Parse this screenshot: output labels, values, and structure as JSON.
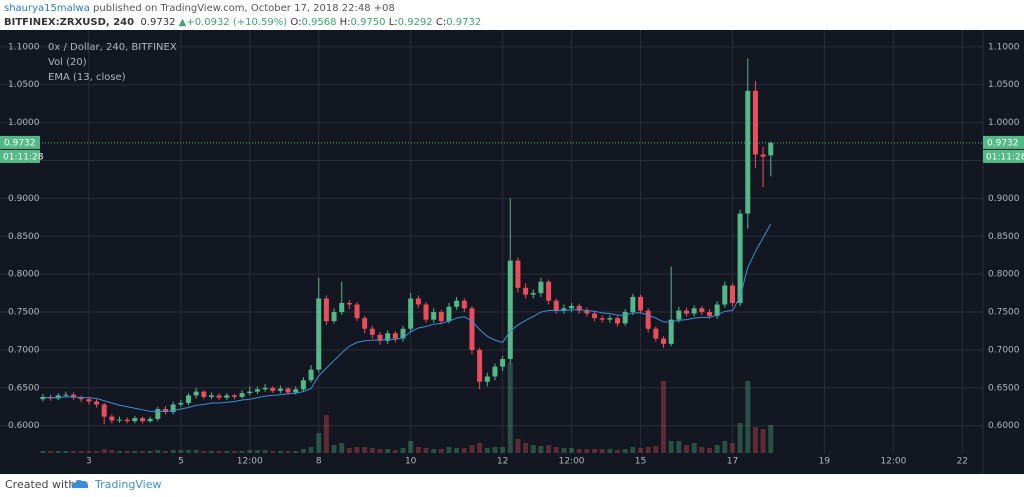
{
  "header": {
    "author": "shaurya15malwa",
    "published": "published on TradingView.com, October 17, 2018 22:48 +08",
    "symbol": "BITFINEX:ZRXUSD, 240",
    "last": "0.9732",
    "change": "▲+0.0932 (+10.59%)",
    "ohlc": [
      {
        "label": "O:",
        "value": "0.9568"
      },
      {
        "label": "H:",
        "value": "0.9750"
      },
      {
        "label": "L:",
        "value": "0.9292"
      },
      {
        "label": "C:",
        "value": "0.9732"
      }
    ]
  },
  "chart_data": {
    "type": "candlestick",
    "title": "0x / Dollar, 240, BITFINEX",
    "volume_name": "Vol (20)",
    "up_color": "#53b987",
    "down_color": "#eb4d5c",
    "grid": true,
    "x": [
      -6,
      -5,
      -4,
      -3,
      -2,
      -1,
      0,
      1,
      2,
      3,
      4,
      5,
      6,
      7,
      8,
      9,
      10,
      11,
      12,
      13,
      14,
      15,
      16,
      17,
      18,
      19,
      20,
      21,
      22,
      23,
      24,
      25,
      26,
      27,
      28,
      29,
      30,
      31,
      32,
      33,
      34,
      35,
      36,
      37,
      38,
      39,
      40,
      41,
      42,
      43,
      44,
      45,
      46,
      47,
      48,
      49,
      50,
      51,
      52,
      53,
      54,
      55,
      56,
      57,
      58,
      59,
      60,
      61,
      62,
      63,
      64,
      65,
      66,
      67,
      68,
      69,
      70,
      71,
      72,
      73,
      74,
      75,
      76,
      77,
      78,
      79,
      80,
      81,
      82,
      83,
      84,
      85,
      86,
      87,
      88,
      89
    ],
    "open": [
      0.635,
      0.638,
      0.636,
      0.64,
      0.641,
      0.637,
      0.635,
      0.632,
      0.628,
      0.612,
      0.607,
      0.608,
      0.606,
      0.61,
      0.606,
      0.609,
      0.622,
      0.618,
      0.628,
      0.63,
      0.64,
      0.645,
      0.638,
      0.64,
      0.637,
      0.64,
      0.638,
      0.643,
      0.645,
      0.648,
      0.65,
      0.646,
      0.649,
      0.644,
      0.648,
      0.66,
      0.674,
      0.768,
      0.738,
      0.75,
      0.762,
      0.76,
      0.742,
      0.728,
      0.72,
      0.712,
      0.722,
      0.715,
      0.728,
      0.768,
      0.76,
      0.74,
      0.75,
      0.738,
      0.757,
      0.765,
      0.755,
      0.7,
      0.658,
      0.665,
      0.678,
      0.688,
      0.818,
      0.782,
      0.773,
      0.775,
      0.79,
      0.765,
      0.752,
      0.755,
      0.758,
      0.752,
      0.748,
      0.742,
      0.74,
      0.742,
      0.735,
      0.75,
      0.77,
      0.752,
      0.728,
      0.715,
      0.708,
      0.74,
      0.752,
      0.748,
      0.755,
      0.75,
      0.745,
      0.76,
      0.785,
      0.762,
      0.88,
      1.042,
      0.958,
      0.9568
    ],
    "high": [
      0.642,
      0.641,
      0.643,
      0.645,
      0.644,
      0.64,
      0.638,
      0.635,
      0.63,
      0.615,
      0.612,
      0.611,
      0.613,
      0.612,
      0.612,
      0.625,
      0.626,
      0.632,
      0.634,
      0.643,
      0.65,
      0.647,
      0.644,
      0.643,
      0.643,
      0.642,
      0.647,
      0.652,
      0.652,
      0.655,
      0.652,
      0.653,
      0.651,
      0.652,
      0.664,
      0.68,
      0.795,
      0.772,
      0.755,
      0.79,
      0.766,
      0.763,
      0.745,
      0.732,
      0.724,
      0.726,
      0.725,
      0.732,
      0.775,
      0.772,
      0.763,
      0.755,
      0.753,
      0.762,
      0.77,
      0.768,
      0.758,
      0.703,
      0.67,
      0.682,
      0.692,
      0.9,
      0.822,
      0.788,
      0.78,
      0.795,
      0.793,
      0.768,
      0.76,
      0.762,
      0.761,
      0.756,
      0.751,
      0.746,
      0.746,
      0.745,
      0.754,
      0.774,
      0.773,
      0.755,
      0.731,
      0.718,
      0.81,
      0.757,
      0.756,
      0.759,
      0.758,
      0.754,
      0.764,
      0.79,
      0.788,
      0.885,
      1.085,
      1.055,
      0.968,
      0.975
    ],
    "low": [
      0.632,
      0.633,
      0.634,
      0.637,
      0.634,
      0.631,
      0.628,
      0.624,
      0.602,
      0.603,
      0.604,
      0.603,
      0.603,
      0.603,
      0.604,
      0.606,
      0.615,
      0.615,
      0.625,
      0.627,
      0.636,
      0.635,
      0.635,
      0.634,
      0.634,
      0.635,
      0.636,
      0.64,
      0.642,
      0.645,
      0.643,
      0.643,
      0.641,
      0.641,
      0.645,
      0.657,
      0.67,
      0.733,
      0.735,
      0.746,
      0.754,
      0.738,
      0.722,
      0.715,
      0.707,
      0.708,
      0.71,
      0.711,
      0.724,
      0.755,
      0.736,
      0.736,
      0.734,
      0.735,
      0.753,
      0.75,
      0.694,
      0.648,
      0.652,
      0.66,
      0.672,
      0.682,
      0.776,
      0.768,
      0.768,
      0.77,
      0.76,
      0.748,
      0.748,
      0.75,
      0.748,
      0.744,
      0.738,
      0.736,
      0.736,
      0.731,
      0.732,
      0.746,
      0.748,
      0.723,
      0.711,
      0.703,
      0.705,
      0.736,
      0.744,
      0.744,
      0.746,
      0.741,
      0.741,
      0.756,
      0.758,
      0.758,
      0.86,
      0.94,
      0.915,
      0.9292
    ],
    "close": [
      0.638,
      0.636,
      0.64,
      0.641,
      0.637,
      0.635,
      0.632,
      0.628,
      0.612,
      0.607,
      0.608,
      0.606,
      0.61,
      0.606,
      0.609,
      0.622,
      0.618,
      0.628,
      0.63,
      0.64,
      0.645,
      0.638,
      0.64,
      0.637,
      0.64,
      0.638,
      0.643,
      0.645,
      0.648,
      0.65,
      0.646,
      0.649,
      0.644,
      0.648,
      0.66,
      0.674,
      0.768,
      0.738,
      0.75,
      0.762,
      0.76,
      0.742,
      0.728,
      0.72,
      0.712,
      0.722,
      0.715,
      0.728,
      0.768,
      0.76,
      0.74,
      0.75,
      0.738,
      0.757,
      0.765,
      0.755,
      0.7,
      0.658,
      0.665,
      0.678,
      0.688,
      0.818,
      0.782,
      0.773,
      0.775,
      0.79,
      0.765,
      0.752,
      0.755,
      0.758,
      0.752,
      0.748,
      0.742,
      0.74,
      0.742,
      0.735,
      0.75,
      0.77,
      0.752,
      0.728,
      0.715,
      0.708,
      0.74,
      0.752,
      0.748,
      0.755,
      0.75,
      0.745,
      0.76,
      0.785,
      0.762,
      0.88,
      1.042,
      0.958,
      0.955,
      0.9732
    ],
    "volume": [
      2,
      2,
      2,
      2,
      2,
      2,
      2,
      2,
      4,
      3,
      2,
      2,
      2,
      2,
      2,
      3,
      2,
      3,
      3,
      3,
      3,
      2,
      2,
      2,
      2,
      2,
      2,
      3,
      3,
      3,
      2,
      2,
      2,
      2,
      4,
      6,
      20,
      38,
      8,
      10,
      5,
      6,
      6,
      5,
      4,
      4,
      3,
      5,
      12,
      6,
      5,
      4,
      4,
      6,
      5,
      5,
      8,
      10,
      5,
      6,
      6,
      90,
      14,
      10,
      8,
      7,
      8,
      6,
      5,
      5,
      4,
      4,
      4,
      4,
      4,
      3,
      4,
      6,
      5,
      6,
      7,
      72,
      12,
      12,
      8,
      10,
      6,
      5,
      8,
      12,
      10,
      30,
      72,
      26,
      24,
      28
    ],
    "vlim": [
      0,
      100
    ],
    "ema": {
      "name": "EMA (13, close)",
      "color": "#3b8fd9",
      "values": [
        0.637,
        0.637,
        0.637,
        0.638,
        0.638,
        0.637,
        0.637,
        0.636,
        0.633,
        0.63,
        0.627,
        0.625,
        0.623,
        0.621,
        0.619,
        0.619,
        0.619,
        0.62,
        0.622,
        0.624,
        0.627,
        0.628,
        0.63,
        0.63,
        0.631,
        0.632,
        0.634,
        0.635,
        0.637,
        0.639,
        0.64,
        0.641,
        0.642,
        0.643,
        0.645,
        0.649,
        0.666,
        0.676,
        0.686,
        0.696,
        0.705,
        0.71,
        0.712,
        0.713,
        0.713,
        0.714,
        0.714,
        0.716,
        0.724,
        0.729,
        0.731,
        0.734,
        0.735,
        0.738,
        0.742,
        0.744,
        0.738,
        0.727,
        0.718,
        0.713,
        0.71,
        0.725,
        0.733,
        0.739,
        0.744,
        0.75,
        0.752,
        0.752,
        0.752,
        0.753,
        0.753,
        0.752,
        0.751,
        0.749,
        0.748,
        0.746,
        0.746,
        0.749,
        0.749,
        0.746,
        0.742,
        0.737,
        0.737,
        0.739,
        0.74,
        0.742,
        0.743,
        0.743,
        0.746,
        0.751,
        0.752,
        0.77,
        0.809,
        0.83,
        0.848,
        0.866
      ]
    },
    "last_price": 0.9732,
    "countdown": "01:11:28",
    "xlim": [
      -11.6,
      116.7
    ],
    "ylim": [
      0.564,
      1.113
    ],
    "xticks": [
      {
        "value": 0,
        "label": "3"
      },
      {
        "value": 12,
        "label": "5"
      },
      {
        "value": 21,
        "label": "12:00"
      },
      {
        "value": 30,
        "label": "8"
      },
      {
        "value": 42,
        "label": "10"
      },
      {
        "value": 54,
        "label": "12"
      },
      {
        "value": 63,
        "label": "12:00"
      },
      {
        "value": 72,
        "label": "15"
      },
      {
        "value": 84,
        "label": "17"
      },
      {
        "value": 96,
        "label": "19"
      },
      {
        "value": 105,
        "label": "12:00"
      },
      {
        "value": 114,
        "label": "22"
      }
    ],
    "yticks": [
      {
        "value": 0.6,
        "label": "0.6000"
      },
      {
        "value": 0.65,
        "label": "0.6500"
      },
      {
        "value": 0.7,
        "label": "0.7000"
      },
      {
        "value": 0.75,
        "label": "0.7500"
      },
      {
        "value": 0.8,
        "label": "0.8000"
      },
      {
        "value": 0.85,
        "label": "0.8500"
      },
      {
        "value": 0.9,
        "label": "0.9000"
      },
      {
        "value": 0.95,
        "label": "0.9500"
      },
      {
        "value": 1.0,
        "label": "1.0000"
      },
      {
        "value": 1.05,
        "label": "1.0500"
      },
      {
        "value": 1.1,
        "label": "1.1000"
      }
    ]
  },
  "footer": {
    "text": "Created with",
    "brand": "TradingView"
  }
}
